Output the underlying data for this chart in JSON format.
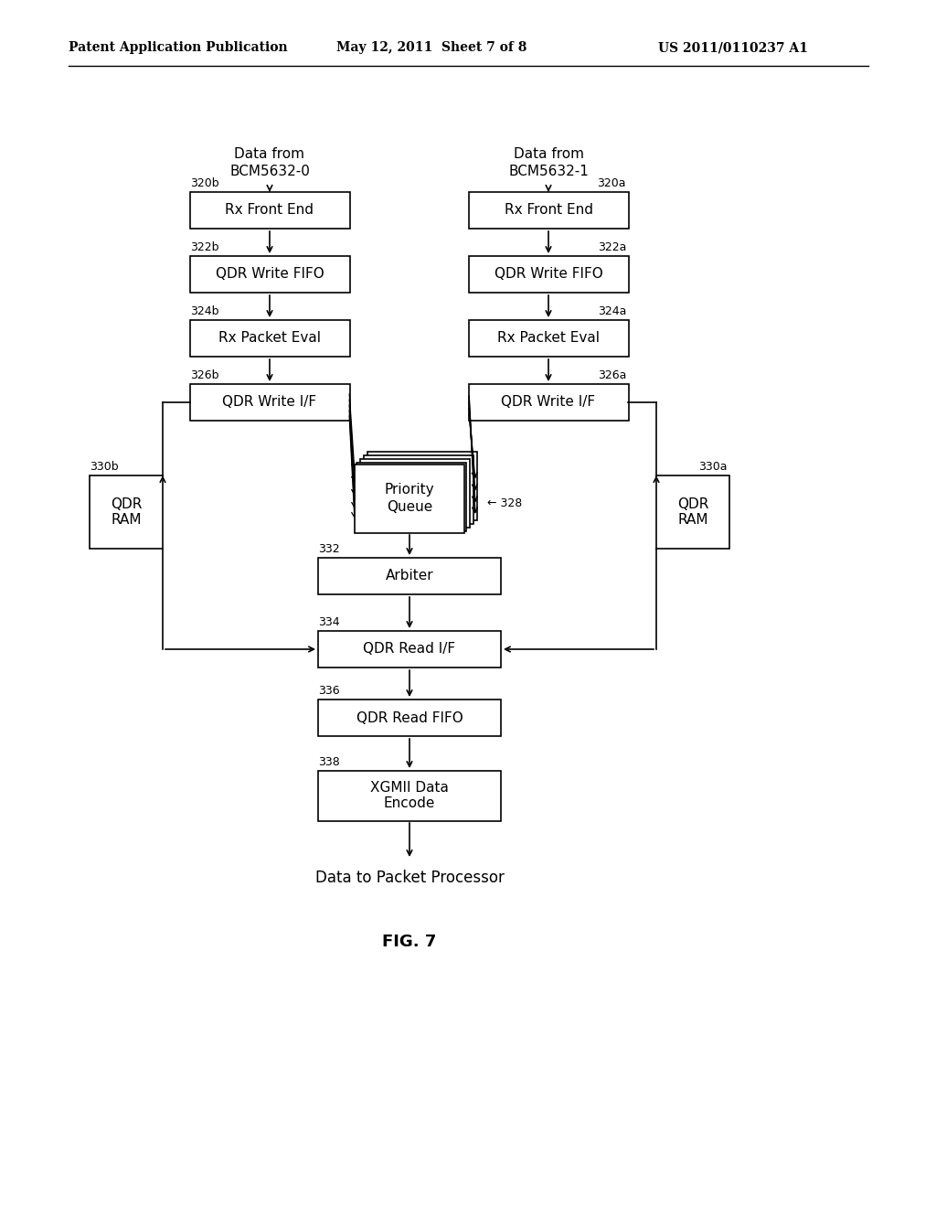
{
  "header_left": "Patent Application Publication",
  "header_mid": "May 12, 2011  Sheet 7 of 8",
  "header_right": "US 2011/0110237 A1",
  "fig_label": "FIG. 7",
  "title_left": "Data from\nBCM5632-0",
  "title_right": "Data from\nBCM5632-1",
  "bottom_label": "Data to Packet Processor",
  "bg_color": "#ffffff"
}
